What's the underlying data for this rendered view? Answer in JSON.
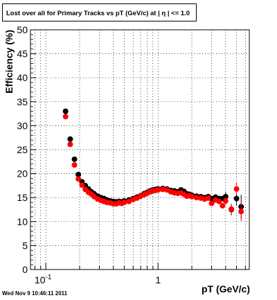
{
  "chart_data": {
    "type": "scatter",
    "title": "Lost over all for Primary Tracks vs pT (GeV/c) at | η | <= 1.0",
    "xlabel": "pT (GeV/c)",
    "ylabel": "Efficiency (%)",
    "xscale": "log",
    "xlim": [
      0.073,
      6.5
    ],
    "ylim": [
      0,
      50
    ],
    "grid": true,
    "y_ticks": [
      "0",
      "5",
      "10",
      "15",
      "20",
      "25",
      "30",
      "35",
      "40",
      "45",
      "50"
    ],
    "x_tick_labels": [
      {
        "value": 0.1,
        "base": "10",
        "exp": "-1"
      },
      {
        "value": 1,
        "base": "1",
        "exp": ""
      }
    ],
    "series": [
      {
        "color": "#000000",
        "x": [
          0.15,
          0.165,
          0.18,
          0.195,
          0.21,
          0.225,
          0.24,
          0.255,
          0.27,
          0.29,
          0.31,
          0.33,
          0.35,
          0.375,
          0.4,
          0.425,
          0.45,
          0.475,
          0.5,
          0.55,
          0.6,
          0.65,
          0.7,
          0.75,
          0.8,
          0.85,
          0.9,
          0.95,
          1.0,
          1.1,
          1.2,
          1.3,
          1.4,
          1.5,
          1.6,
          1.7,
          1.8,
          1.9,
          2.0,
          2.2,
          2.4,
          2.6,
          2.8,
          3.0,
          3.25,
          3.5,
          3.75,
          4.0,
          4.5,
          5.0,
          5.5
        ],
        "y": [
          33,
          27.2,
          23,
          19.8,
          18.3,
          17.5,
          16.8,
          16.2,
          15.8,
          15.3,
          15,
          14.8,
          14.5,
          14.3,
          14.2,
          14.1,
          14.2,
          14.1,
          14.3,
          14.5,
          14.8,
          15.1,
          15.4,
          15.8,
          16.1,
          16.4,
          16.6,
          16.7,
          16.8,
          16.9,
          16.8,
          16.5,
          16.4,
          16.2,
          16.6,
          16.3,
          15.8,
          15.7,
          15.5,
          15.3,
          15.2,
          15.0,
          15.2,
          14.8,
          15.1,
          14.8,
          14.8,
          15.2,
          12.5,
          14.8,
          13.1
        ],
        "err": [
          0,
          0,
          0,
          0,
          0,
          0,
          0,
          0,
          0,
          0,
          0,
          0,
          0,
          0,
          0,
          0,
          0,
          0,
          0,
          0,
          0,
          0,
          0,
          0,
          0,
          0,
          0,
          0,
          0,
          0,
          0,
          0,
          0,
          0,
          0,
          0,
          0,
          0,
          0,
          0,
          0,
          0,
          0,
          0,
          0,
          0,
          0,
          1.0,
          1.2,
          1.5,
          2.5
        ]
      },
      {
        "color": "#ff0000",
        "x": [
          0.15,
          0.165,
          0.18,
          0.195,
          0.21,
          0.225,
          0.24,
          0.255,
          0.27,
          0.29,
          0.31,
          0.33,
          0.35,
          0.375,
          0.4,
          0.425,
          0.45,
          0.475,
          0.5,
          0.55,
          0.6,
          0.65,
          0.7,
          0.75,
          0.8,
          0.85,
          0.9,
          0.95,
          1.0,
          1.1,
          1.2,
          1.3,
          1.4,
          1.5,
          1.6,
          1.7,
          1.8,
          1.9,
          2.0,
          2.2,
          2.4,
          2.6,
          2.8,
          3.0,
          3.25,
          3.5,
          3.75,
          4.0,
          4.5,
          5.0,
          5.5
        ],
        "y": [
          31.9,
          26.1,
          21.8,
          18.9,
          17.6,
          16.7,
          16.1,
          15.7,
          15.2,
          14.7,
          14.4,
          14.2,
          14.0,
          13.9,
          13.7,
          13.7,
          13.9,
          13.8,
          14.0,
          14.2,
          14.6,
          14.9,
          15.3,
          15.6,
          15.9,
          16.2,
          16.4,
          16.5,
          16.6,
          16.7,
          16.6,
          16.2,
          16.0,
          15.9,
          16.0,
          15.7,
          15.3,
          15.4,
          15.2,
          15.0,
          14.9,
          14.7,
          14.9,
          13.8,
          14.5,
          14.2,
          13.3,
          14.3,
          12.6,
          16.8,
          12.1
        ],
        "err": [
          0,
          0,
          0,
          0,
          0,
          0,
          0,
          0,
          0,
          0,
          0,
          0,
          0,
          0,
          0,
          0,
          0,
          0,
          0,
          0,
          0,
          0,
          0,
          0,
          0,
          0,
          0,
          0,
          0,
          0,
          0,
          0,
          0,
          0,
          0,
          0,
          0,
          0,
          0,
          0,
          0,
          0,
          0,
          0,
          0,
          0,
          0,
          0.8,
          1.0,
          1.3,
          2.0
        ]
      }
    ]
  },
  "footer": {
    "timestamp": "Wed Nov  9 10:46:11 2011"
  }
}
